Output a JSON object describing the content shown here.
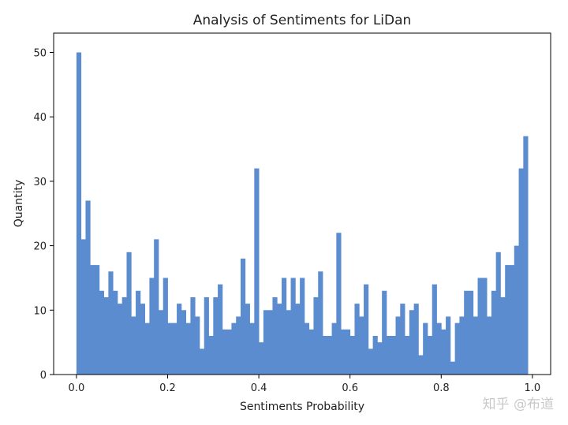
{
  "chart_data": {
    "type": "bar",
    "title": "Analysis of Sentiments for LiDan",
    "xlabel": "Sentiments Probability",
    "ylabel": "Quantity",
    "xlim": [
      -0.05,
      1.04
    ],
    "ylim": [
      0,
      53
    ],
    "xticks": [
      "0.0",
      "0.2",
      "0.4",
      "0.6",
      "0.8",
      "1.0"
    ],
    "yticks": [
      "0",
      "10",
      "20",
      "30",
      "40",
      "50"
    ],
    "bin_width": 0.01,
    "bin_start": 0.0,
    "values": [
      50,
      21,
      27,
      17,
      17,
      13,
      12,
      16,
      13,
      11,
      12,
      19,
      9,
      13,
      11,
      8,
      15,
      21,
      10,
      15,
      8,
      8,
      11,
      10,
      8,
      12,
      9,
      4,
      12,
      6,
      12,
      14,
      7,
      7,
      8,
      9,
      18,
      11,
      8,
      32,
      5,
      10,
      10,
      12,
      11,
      15,
      10,
      15,
      11,
      15,
      8,
      7,
      12,
      16,
      6,
      6,
      8,
      22,
      7,
      7,
      6,
      11,
      9,
      14,
      4,
      6,
      5,
      13,
      6,
      6,
      9,
      11,
      6,
      10,
      11,
      3,
      8,
      6,
      14,
      8,
      7,
      9,
      2,
      8,
      9,
      13,
      13,
      9,
      15,
      15,
      9,
      13,
      19,
      12,
      17,
      17,
      20,
      32,
      37
    ],
    "bar_color": "#5b8ccf",
    "grid": false
  },
  "watermark": "知乎 @布道"
}
